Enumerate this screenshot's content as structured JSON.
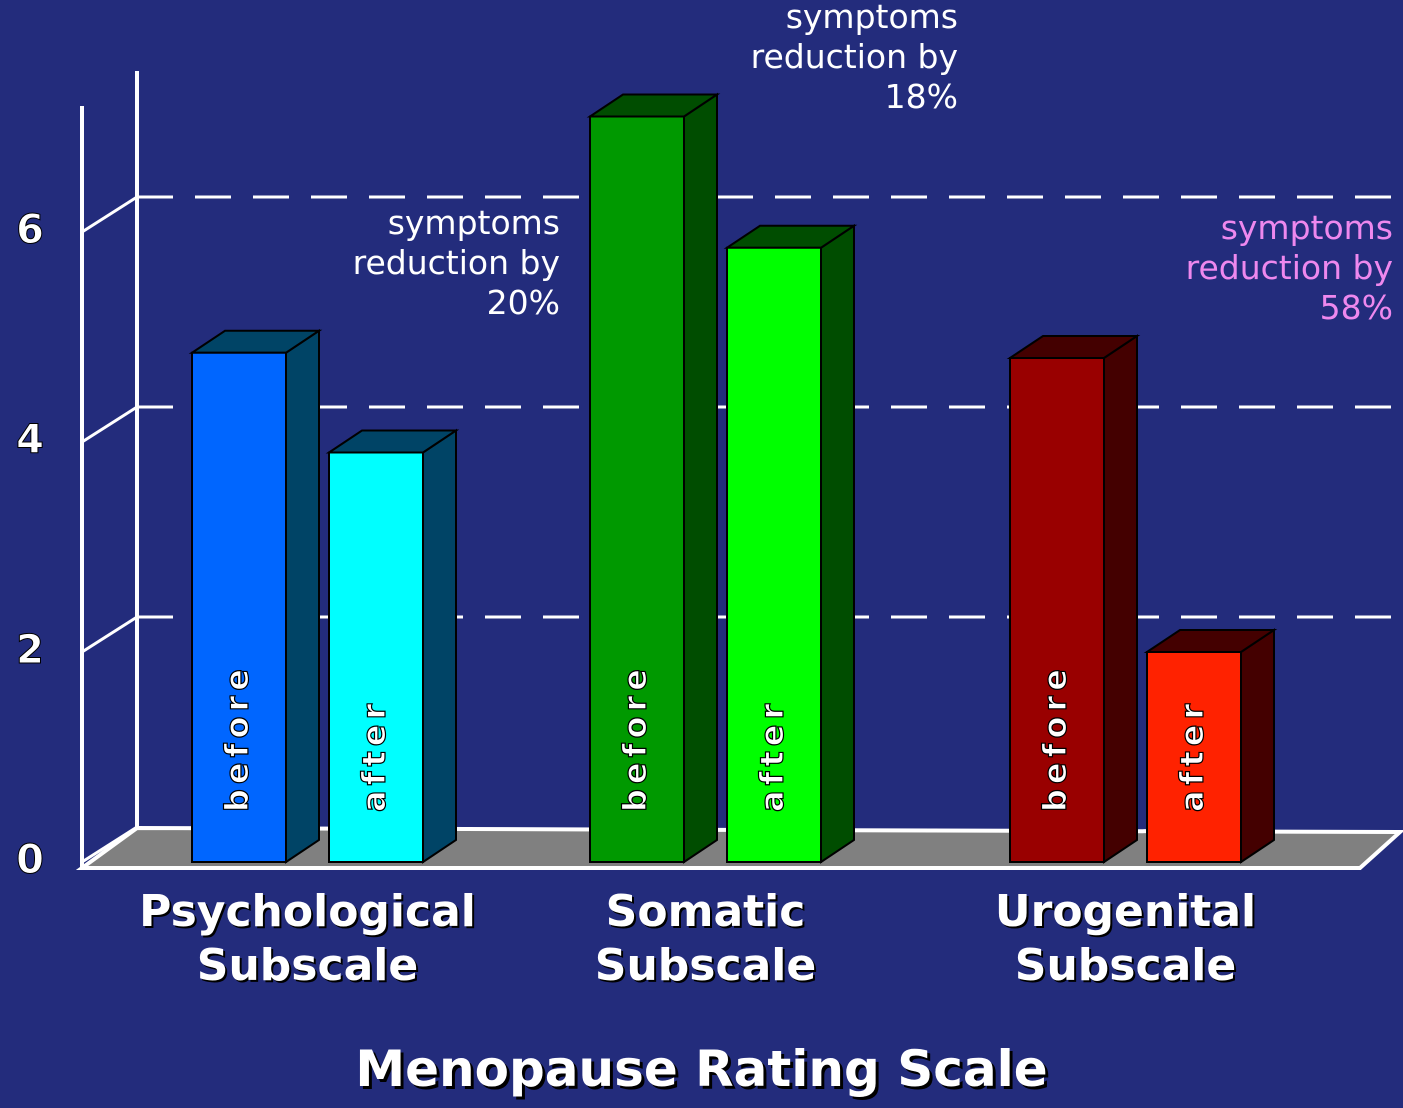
{
  "chart_data": {
    "type": "bar3d",
    "title": "Menopause Rating Scale",
    "categories": [
      "Psychological Subscale",
      "Somatic Subscale",
      "Urogenital Subscale"
    ],
    "series": [
      {
        "name": "before",
        "colors": [
          "#0066ff",
          "#009900",
          "#990000"
        ],
        "values": [
          4.85,
          7.1,
          4.8
        ]
      },
      {
        "name": "after",
        "colors": [
          "#00ffff",
          "#00ff00",
          "#ff2200"
        ],
        "values": [
          3.9,
          5.85,
          2.0
        ]
      }
    ],
    "side_colors": [
      "#004466",
      "#004d00",
      "#440000"
    ],
    "annotations": [
      {
        "text": "symptoms reduction by 20%",
        "color": "#ffffff"
      },
      {
        "text": "symptoms reduction by 18%",
        "color": "#ffffff"
      },
      {
        "text": "symptoms reduction by 58%",
        "color": "#ee88ee"
      }
    ],
    "ylim": [
      0,
      7.2
    ],
    "yticks": [
      0,
      2,
      4,
      6
    ],
    "grid": true
  }
}
